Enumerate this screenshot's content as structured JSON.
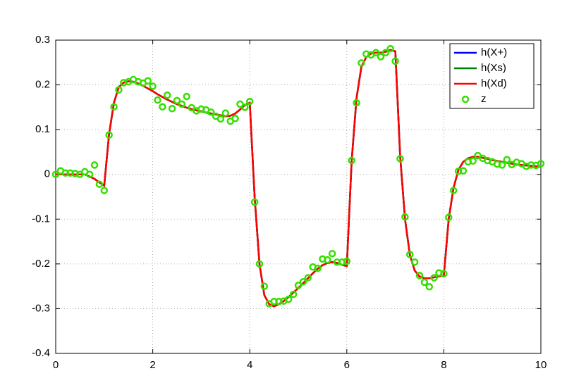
{
  "chart_data": {
    "type": "line",
    "x": [
      0,
      0.1,
      0.2,
      0.3,
      0.4,
      0.5,
      0.6,
      0.7,
      0.8,
      0.9,
      1,
      1.1,
      1.2,
      1.3,
      1.4,
      1.5,
      1.6,
      1.7,
      1.8,
      1.9,
      2,
      2.1,
      2.2,
      2.3,
      2.4,
      2.5,
      2.6,
      2.7,
      2.8,
      2.9,
      3,
      3.1,
      3.2,
      3.3,
      3.4,
      3.5,
      3.6,
      3.7,
      3.8,
      3.9,
      4,
      4.1,
      4.2,
      4.3,
      4.4,
      4.5,
      4.6,
      4.7,
      4.8,
      4.9,
      5,
      5.1,
      5.2,
      5.3,
      5.4,
      5.5,
      5.6,
      5.7,
      5.8,
      5.9,
      6,
      6.1,
      6.2,
      6.3,
      6.4,
      6.5,
      6.6,
      6.7,
      6.8,
      6.9,
      7,
      7.1,
      7.2,
      7.3,
      7.4,
      7.5,
      7.6,
      7.7,
      7.8,
      7.9,
      8,
      8.1,
      8.2,
      8.3,
      8.4,
      8.5,
      8.6,
      8.7,
      8.8,
      8.9,
      9,
      9.1,
      9.2,
      9.3,
      9.4,
      9.5,
      9.6,
      9.7,
      9.8,
      9.9,
      10
    ],
    "series": [
      {
        "name": "h(X+)",
        "color": "#0000ff",
        "mode": "line",
        "values": [
          0,
          0,
          0,
          0,
          0,
          0,
          0,
          -0.005,
          -0.01,
          -0.018,
          -0.025,
          0.09,
          0.16,
          0.195,
          0.205,
          0.208,
          0.207,
          0.203,
          0.198,
          0.192,
          0.186,
          0.179,
          0.173,
          0.167,
          0.162,
          0.157,
          0.153,
          0.149,
          0.146,
          0.143,
          0.141,
          0.138,
          0.136,
          0.134,
          0.132,
          0.13,
          0.131,
          0.136,
          0.145,
          0.155,
          0.16,
          -0.05,
          -0.2,
          -0.27,
          -0.29,
          -0.295,
          -0.29,
          -0.283,
          -0.274,
          -0.264,
          -0.254,
          -0.243,
          -0.232,
          -0.221,
          -0.211,
          -0.203,
          -0.198,
          -0.196,
          -0.198,
          -0.202,
          -0.205,
          0.03,
          0.17,
          0.24,
          0.262,
          0.27,
          0.272,
          0.272,
          0.274,
          0.278,
          0.275,
          0.04,
          -0.1,
          -0.18,
          -0.215,
          -0.228,
          -0.232,
          -0.232,
          -0.23,
          -0.228,
          -0.226,
          -0.1,
          -0.03,
          0.01,
          0.028,
          0.036,
          0.039,
          0.039,
          0.037,
          0.035,
          0.032,
          0.03,
          0.028,
          0.026,
          0.024,
          0.022,
          0.021,
          0.02,
          0.019,
          0.018,
          0.017
        ]
      },
      {
        "name": "h(Xs)",
        "color": "#008000",
        "mode": "line",
        "values": [
          0,
          0,
          0,
          0,
          0,
          0,
          0,
          -0.005,
          -0.01,
          -0.018,
          -0.025,
          0.09,
          0.16,
          0.195,
          0.205,
          0.208,
          0.207,
          0.203,
          0.198,
          0.192,
          0.186,
          0.179,
          0.173,
          0.167,
          0.162,
          0.157,
          0.153,
          0.149,
          0.146,
          0.143,
          0.141,
          0.138,
          0.136,
          0.134,
          0.132,
          0.13,
          0.131,
          0.136,
          0.145,
          0.155,
          0.16,
          -0.05,
          -0.2,
          -0.27,
          -0.29,
          -0.295,
          -0.29,
          -0.283,
          -0.274,
          -0.264,
          -0.254,
          -0.243,
          -0.232,
          -0.221,
          -0.211,
          -0.203,
          -0.198,
          -0.196,
          -0.198,
          -0.202,
          -0.205,
          0.03,
          0.17,
          0.24,
          0.262,
          0.27,
          0.272,
          0.272,
          0.274,
          0.278,
          0.275,
          0.04,
          -0.1,
          -0.18,
          -0.215,
          -0.228,
          -0.232,
          -0.232,
          -0.23,
          -0.228,
          -0.226,
          -0.1,
          -0.03,
          0.01,
          0.028,
          0.036,
          0.039,
          0.039,
          0.037,
          0.035,
          0.032,
          0.03,
          0.028,
          0.026,
          0.024,
          0.022,
          0.021,
          0.02,
          0.019,
          0.018,
          0.017
        ]
      },
      {
        "name": "h(Xd)",
        "color": "#ff0000",
        "mode": "line",
        "values": [
          0,
          0,
          0,
          0,
          0,
          0,
          0,
          -0.005,
          -0.01,
          -0.018,
          -0.025,
          0.09,
          0.16,
          0.195,
          0.205,
          0.208,
          0.207,
          0.203,
          0.198,
          0.192,
          0.186,
          0.179,
          0.173,
          0.167,
          0.162,
          0.157,
          0.153,
          0.149,
          0.146,
          0.143,
          0.141,
          0.138,
          0.136,
          0.134,
          0.132,
          0.13,
          0.131,
          0.136,
          0.145,
          0.155,
          0.16,
          -0.05,
          -0.2,
          -0.27,
          -0.29,
          -0.295,
          -0.29,
          -0.283,
          -0.274,
          -0.264,
          -0.254,
          -0.243,
          -0.232,
          -0.221,
          -0.211,
          -0.203,
          -0.198,
          -0.196,
          -0.198,
          -0.202,
          -0.205,
          0.03,
          0.17,
          0.24,
          0.262,
          0.27,
          0.272,
          0.272,
          0.274,
          0.278,
          0.275,
          0.04,
          -0.1,
          -0.18,
          -0.215,
          -0.228,
          -0.232,
          -0.232,
          -0.23,
          -0.228,
          -0.226,
          -0.1,
          -0.03,
          0.01,
          0.028,
          0.036,
          0.039,
          0.039,
          0.037,
          0.035,
          0.032,
          0.03,
          0.028,
          0.026,
          0.024,
          0.022,
          0.021,
          0.02,
          0.019,
          0.018,
          0.017
        ]
      },
      {
        "name": "z",
        "color": "#33e000",
        "mode": "marker",
        "values": [
          0,
          0.008,
          0.003,
          0.003,
          0.002,
          0,
          0.006,
          0,
          0.021,
          -0.022,
          -0.036,
          0.088,
          0.151,
          0.189,
          0.205,
          0.207,
          0.212,
          0.207,
          0.204,
          0.209,
          0.197,
          0.166,
          0.151,
          0.177,
          0.147,
          0.165,
          0.157,
          0.174,
          0.149,
          0.142,
          0.146,
          0.144,
          0.139,
          0.13,
          0.124,
          0.137,
          0.119,
          0.125,
          0.157,
          0.15,
          0.163,
          -0.062,
          -0.2,
          -0.25,
          -0.289,
          -0.284,
          -0.284,
          -0.283,
          -0.279,
          -0.268,
          -0.248,
          -0.24,
          -0.231,
          -0.207,
          -0.21,
          -0.189,
          -0.191,
          -0.177,
          -0.196,
          -0.196,
          -0.194,
          0.031,
          0.16,
          0.249,
          0.269,
          0.267,
          0.272,
          0.263,
          0.272,
          0.281,
          0.253,
          0.035,
          -0.095,
          -0.179,
          -0.196,
          -0.226,
          -0.241,
          -0.251,
          -0.231,
          -0.22,
          -0.222,
          -0.096,
          -0.036,
          0.007,
          0.008,
          0.028,
          0.03,
          0.042,
          0.036,
          0.031,
          0.028,
          0.023,
          0.021,
          0.033,
          0.022,
          0.027,
          0.024,
          0.018,
          0.021,
          0.02,
          0.024
        ]
      }
    ],
    "xlim": [
      0,
      10
    ],
    "xticks": [
      0,
      2,
      4,
      6,
      8,
      10
    ],
    "ylim": [
      -0.4,
      0.3
    ],
    "yticks": [
      -0.4,
      -0.3,
      -0.2,
      -0.1,
      0,
      0.1,
      0.2,
      0.3
    ],
    "grid": true,
    "legend": "top-right"
  }
}
